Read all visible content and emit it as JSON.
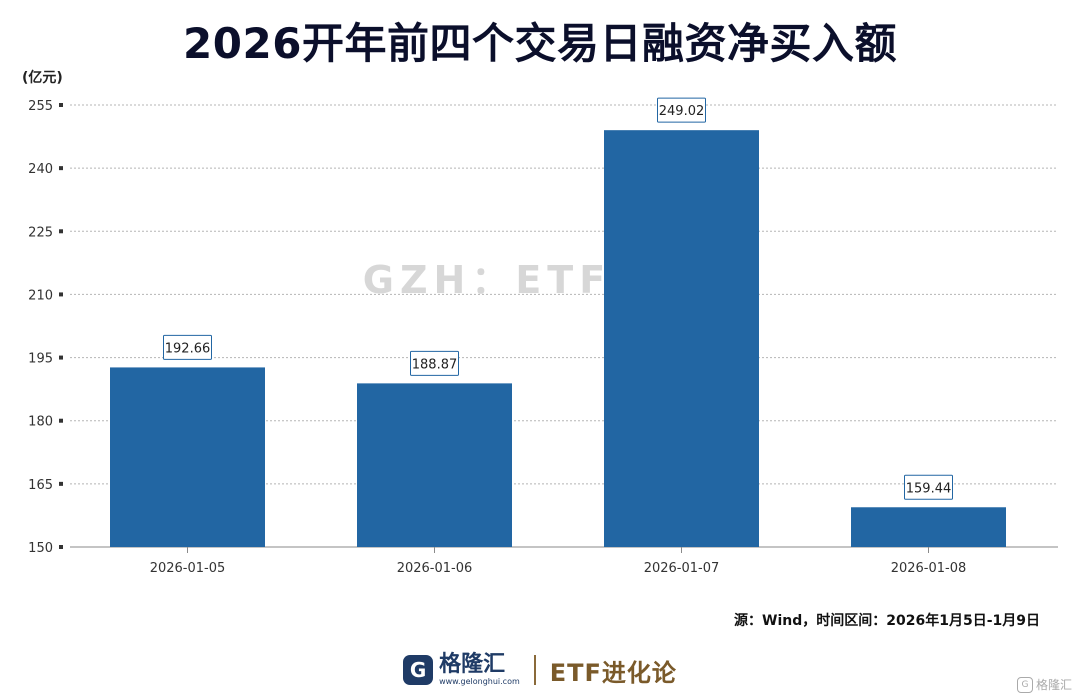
{
  "title": "2026开年前四个交易日融资净买入额",
  "watermark": "GZH：ETF进化论",
  "source": "源：Wind，时间区间：2026年1月5日-1月9日",
  "footer": {
    "brand_logo": "G",
    "brand_name": "格隆汇",
    "brand_url": "www.gelonghui.com",
    "etf_name": "ETF进化论",
    "corner_logo": "G",
    "corner_name": "格隆汇"
  },
  "colors": {
    "bar": "#2266a3",
    "grid": "#b5b5b5",
    "axis_text": "#333333",
    "title": "#0b0f2b"
  },
  "chart_data": {
    "type": "bar",
    "title": "2026开年前四个交易日融资净买入额",
    "ylabel": "(亿元)",
    "xlabel": "",
    "categories": [
      "2026-01-05",
      "2026-01-06",
      "2026-01-07",
      "2026-01-08"
    ],
    "values": [
      192.66,
      188.87,
      249.02,
      159.44
    ],
    "data_labels": [
      "192.66",
      "188.87",
      "249.02",
      "159.44"
    ],
    "yticks": [
      150,
      165,
      180,
      195,
      210,
      225,
      240,
      255
    ],
    "ylim": [
      150,
      255
    ],
    "grid": true
  }
}
